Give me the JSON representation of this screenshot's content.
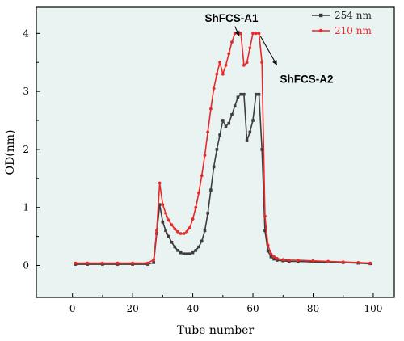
{
  "chart_data": {
    "type": "line",
    "xlabel": "Tube number",
    "ylabel": "OD(nm)",
    "xlim": [
      -12,
      107
    ],
    "ylim": [
      -0.55,
      4.45
    ],
    "xticks": [
      0,
      20,
      40,
      60,
      80,
      100
    ],
    "yticks": [
      0,
      1,
      2,
      3,
      4
    ],
    "grid": false,
    "legend_position": "top-right",
    "plot_background": "#e9f3f1",
    "annotations": [
      {
        "text": "ShFCS-A1",
        "x": 44,
        "y": 4.2,
        "arrow_to": [
          55.5,
          3.95
        ]
      },
      {
        "text": "ShFCS-A2",
        "x": 69,
        "y": 3.15,
        "arrow_from": [
          62.5,
          3.95
        ],
        "arrow_to": [
          68,
          3.45
        ]
      }
    ],
    "series": [
      {
        "name": "254 nm",
        "color": "#3d3d3d",
        "x": [
          1,
          5,
          10,
          15,
          20,
          25,
          27,
          28,
          29,
          30,
          31,
          32,
          33,
          34,
          35,
          36,
          37,
          38,
          39,
          40,
          41,
          42,
          43,
          44,
          45,
          46,
          47,
          48,
          49,
          50,
          51,
          52,
          53,
          54,
          55,
          56,
          57,
          58,
          59,
          60,
          61,
          62,
          63,
          64,
          65,
          66,
          67,
          68,
          70,
          72,
          75,
          80,
          85,
          90,
          95,
          99
        ],
        "values": [
          0.02,
          0.02,
          0.02,
          0.02,
          0.02,
          0.02,
          0.05,
          0.55,
          1.05,
          0.75,
          0.6,
          0.5,
          0.4,
          0.32,
          0.26,
          0.22,
          0.2,
          0.2,
          0.2,
          0.22,
          0.26,
          0.32,
          0.42,
          0.6,
          0.9,
          1.3,
          1.7,
          2.0,
          2.25,
          2.5,
          2.4,
          2.45,
          2.6,
          2.75,
          2.9,
          2.95,
          2.95,
          2.15,
          2.3,
          2.5,
          2.95,
          2.95,
          2.0,
          0.6,
          0.25,
          0.15,
          0.11,
          0.09,
          0.08,
          0.07,
          0.07,
          0.06,
          0.06,
          0.05,
          0.04,
          0.03
        ]
      },
      {
        "name": "210 nm",
        "color": "#e8282b",
        "x": [
          1,
          5,
          10,
          15,
          20,
          25,
          27,
          28,
          29,
          30,
          31,
          32,
          33,
          34,
          35,
          36,
          37,
          38,
          39,
          40,
          41,
          42,
          43,
          44,
          45,
          46,
          47,
          48,
          49,
          50,
          51,
          52,
          53,
          54,
          55,
          56,
          57,
          58,
          59,
          60,
          61,
          62,
          63,
          64,
          65,
          66,
          67,
          68,
          70,
          72,
          75,
          80,
          85,
          90,
          95,
          99
        ],
        "values": [
          0.04,
          0.04,
          0.04,
          0.04,
          0.04,
          0.04,
          0.1,
          0.6,
          1.42,
          1.05,
          0.9,
          0.78,
          0.7,
          0.63,
          0.58,
          0.55,
          0.55,
          0.58,
          0.65,
          0.8,
          1.0,
          1.25,
          1.55,
          1.9,
          2.3,
          2.7,
          3.05,
          3.3,
          3.5,
          3.3,
          3.45,
          3.65,
          3.85,
          4.0,
          4.0,
          4.0,
          3.45,
          3.5,
          3.75,
          4.0,
          4.0,
          4.0,
          3.5,
          0.85,
          0.35,
          0.2,
          0.15,
          0.12,
          0.1,
          0.09,
          0.09,
          0.08,
          0.07,
          0.06,
          0.05,
          0.04
        ]
      }
    ]
  }
}
